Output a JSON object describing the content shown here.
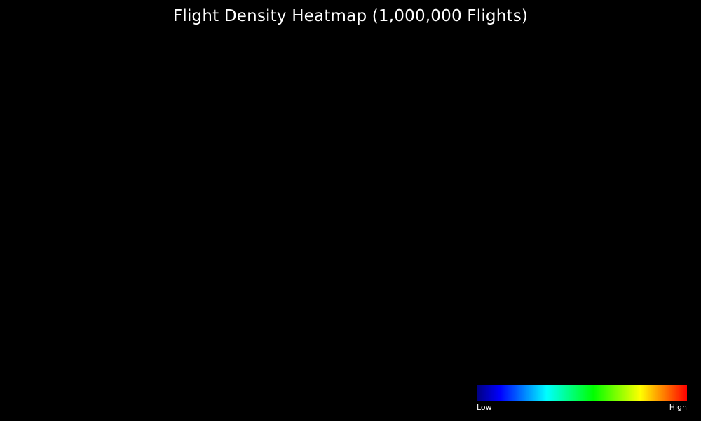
{
  "chart_data": {
    "type": "heatmap",
    "title": "Flight Density Heatmap (1,000,000 Flights)",
    "xlabel": "",
    "ylabel": "",
    "grid": false,
    "background": "#000000",
    "points": [],
    "legend": {
      "placement": "bottom-right",
      "low_label": "Low",
      "high_label": "High",
      "colors": [
        "#00007f",
        "#0000ff",
        "#007fff",
        "#00ffff",
        "#00ff7f",
        "#00ff00",
        "#7fff00",
        "#ffff00",
        "#ff7f00",
        "#ff0000"
      ]
    }
  }
}
